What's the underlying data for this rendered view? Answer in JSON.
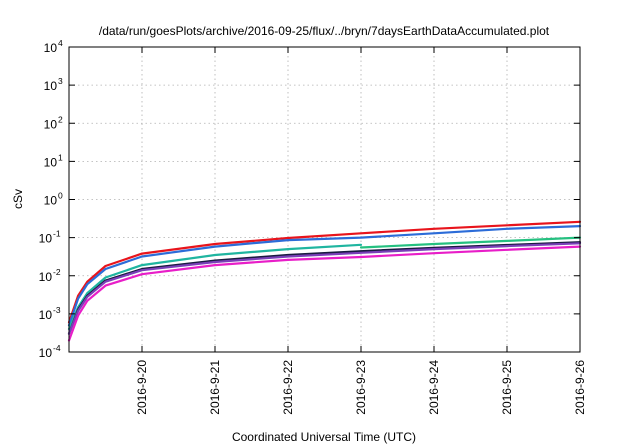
{
  "chart_data": {
    "type": "line",
    "title": "/data/run/goesPlots/archive/2016-09-25/flux/../bryn/7daysEarthDataAccumulated.plot",
    "xlabel": "Coordinated Universal Time (UTC)",
    "ylabel": "cSv",
    "x_scale": "time",
    "y_scale": "log",
    "xlim": [
      "2016-09-19T00:00",
      "2016-09-26T00:00"
    ],
    "ylim": [
      0.0001,
      10000
    ],
    "x_tick_labels": [
      "2016-9-20",
      "2016-9-21",
      "2016-9-22",
      "2016-9-23",
      "2016-9-24",
      "2016-9-25",
      "2016-9-26"
    ],
    "y_tick_labels": [
      {
        "base": "10",
        "exp": "-4"
      },
      {
        "base": "10",
        "exp": "-3"
      },
      {
        "base": "10",
        "exp": "-2"
      },
      {
        "base": "10",
        "exp": "-1"
      },
      {
        "base": "10",
        "exp": "0"
      },
      {
        "base": "10",
        "exp": "1"
      },
      {
        "base": "10",
        "exp": "2"
      },
      {
        "base": "10",
        "exp": "3"
      },
      {
        "base": "10",
        "exp": "4"
      }
    ],
    "grid": true,
    "series": [
      {
        "color": "#e8141c",
        "x": [
          "2016-09-19T00:00",
          "2016-09-19T03:00",
          "2016-09-19T06:00",
          "2016-09-19T12:00",
          "2016-09-20T00:00",
          "2016-09-21T00:00",
          "2016-09-22T00:00",
          "2016-09-23T00:00",
          "2016-09-24T00:00",
          "2016-09-25T00:00",
          "2016-09-26T00:00"
        ],
        "y": [
          0.0006,
          0.003,
          0.007,
          0.018,
          0.038,
          0.068,
          0.098,
          0.13,
          0.17,
          0.21,
          0.26
        ]
      },
      {
        "color": "#2c6cd8",
        "x": [
          "2016-09-19T00:00",
          "2016-09-19T03:00",
          "2016-09-19T06:00",
          "2016-09-19T12:00",
          "2016-09-20T00:00",
          "2016-09-21T00:00",
          "2016-09-22T00:00",
          "2016-09-23T00:00",
          "2016-09-24T00:00",
          "2016-09-25T00:00",
          "2016-09-26T00:00"
        ],
        "y": [
          0.0005,
          0.0025,
          0.006,
          0.015,
          0.032,
          0.058,
          0.086,
          0.1,
          0.13,
          0.17,
          0.2
        ]
      },
      {
        "color": "#1fb5a0",
        "x": [
          "2016-09-19T00:00",
          "2016-09-19T03:00",
          "2016-09-19T06:00",
          "2016-09-19T12:00",
          "2016-09-20T00:00",
          "2016-09-21T00:00",
          "2016-09-22T00:00",
          "2016-09-23T00:00"
        ],
        "y": [
          0.0004,
          0.0015,
          0.0035,
          0.009,
          0.019,
          0.035,
          0.05,
          0.065
        ]
      },
      {
        "color": "#25c080",
        "x": [
          "2016-09-23T00:00",
          "2016-09-24T00:00",
          "2016-09-25T00:00",
          "2016-09-26T00:00"
        ],
        "y": [
          0.055,
          0.068,
          0.082,
          0.1
        ]
      },
      {
        "color": "#1a1a40",
        "x": [
          "2016-09-19T00:00",
          "2016-09-19T03:00",
          "2016-09-19T06:00",
          "2016-09-19T12:00",
          "2016-09-20T00:00",
          "2016-09-21T00:00",
          "2016-09-22T00:00",
          "2016-09-23T00:00",
          "2016-09-24T00:00",
          "2016-09-25T00:00",
          "2016-09-26T00:00"
        ],
        "y": [
          0.0003,
          0.0013,
          0.003,
          0.0075,
          0.015,
          0.025,
          0.035,
          0.044,
          0.054,
          0.064,
          0.076
        ]
      },
      {
        "color": "#7a3fb8",
        "x": [
          "2016-09-19T00:00",
          "2016-09-19T03:00",
          "2016-09-19T06:00",
          "2016-09-19T12:00",
          "2016-09-20T00:00",
          "2016-09-21T00:00",
          "2016-09-22T00:00",
          "2016-09-23T00:00",
          "2016-09-24T00:00",
          "2016-09-25T00:00",
          "2016-09-26T00:00"
        ],
        "y": [
          0.0003,
          0.0012,
          0.0028,
          0.007,
          0.014,
          0.023,
          0.032,
          0.04,
          0.05,
          0.06,
          0.071
        ]
      },
      {
        "color": "#e81ec8",
        "x": [
          "2016-09-19T00:00",
          "2016-09-19T03:00",
          "2016-09-19T06:00",
          "2016-09-19T12:00",
          "2016-09-20T00:00",
          "2016-09-21T00:00",
          "2016-09-22T00:00",
          "2016-09-23T00:00",
          "2016-09-24T00:00",
          "2016-09-25T00:00",
          "2016-09-26T00:00"
        ],
        "y": [
          0.0002,
          0.0009,
          0.0022,
          0.0055,
          0.011,
          0.019,
          0.026,
          0.031,
          0.039,
          0.048,
          0.058
        ]
      }
    ]
  }
}
